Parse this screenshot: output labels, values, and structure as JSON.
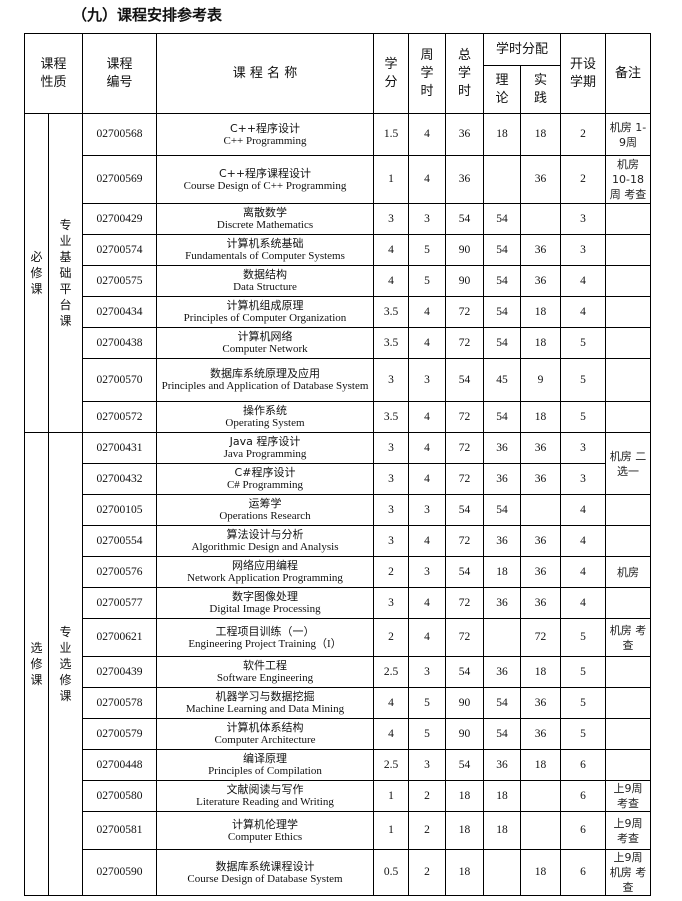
{
  "title": "（九）课程安排参考表",
  "headers": {
    "nature": "课程性质",
    "code": "课程编号",
    "name": "课 程 名 称",
    "credit": "学分",
    "weekly": "周学时",
    "total": "总学时",
    "dist": "学时分配",
    "theory": "理论",
    "practice": "实践",
    "term": "开设学期",
    "remark": "备注"
  },
  "groups": [
    {
      "type": "必修课",
      "sub": "专业基础平台课"
    },
    {
      "type": "选修课",
      "sub": "专业选修课"
    }
  ],
  "rows": [
    {
      "group": 0,
      "code": "02700568",
      "zh": "C++程序设计",
      "en": "C++ Programming",
      "credit": "1.5",
      "weekly": "4",
      "total": "36",
      "theory": "18",
      "practice": "18",
      "term": "2",
      "remark": "机房 1-9周"
    },
    {
      "group": 0,
      "code": "02700569",
      "zh": "C++程序课程设计",
      "en": "Course Design of C++ Programming",
      "credit": "1",
      "weekly": "4",
      "total": "36",
      "theory": "",
      "practice": "36",
      "term": "2",
      "remark": "机房 10-18周 考查"
    },
    {
      "group": 0,
      "code": "02700429",
      "zh": "离散数学",
      "en": "Discrete Mathematics",
      "credit": "3",
      "weekly": "3",
      "total": "54",
      "theory": "54",
      "practice": "",
      "term": "3",
      "remark": ""
    },
    {
      "group": 0,
      "code": "02700574",
      "zh": "计算机系统基础",
      "en": "Fundamentals of Computer Systems",
      "credit": "4",
      "weekly": "5",
      "total": "90",
      "theory": "54",
      "practice": "36",
      "term": "3",
      "remark": ""
    },
    {
      "group": 0,
      "code": "02700575",
      "zh": "数据结构",
      "en": "Data Structure",
      "credit": "4",
      "weekly": "5",
      "total": "90",
      "theory": "54",
      "practice": "36",
      "term": "4",
      "remark": ""
    },
    {
      "group": 0,
      "code": "02700434",
      "zh": "计算机组成原理",
      "en": "Principles of Computer Organization",
      "credit": "3.5",
      "weekly": "4",
      "total": "72",
      "theory": "54",
      "practice": "18",
      "term": "4",
      "remark": ""
    },
    {
      "group": 0,
      "code": "02700438",
      "zh": "计算机网络",
      "en": "Computer Network",
      "credit": "3.5",
      "weekly": "4",
      "total": "72",
      "theory": "54",
      "practice": "18",
      "term": "5",
      "remark": ""
    },
    {
      "group": 0,
      "code": "02700570",
      "zh": "数据库系统原理及应用",
      "en": "Principles and Application of Database System",
      "credit": "3",
      "weekly": "3",
      "total": "54",
      "theory": "45",
      "practice": "9",
      "term": "5",
      "remark": ""
    },
    {
      "group": 0,
      "code": "02700572",
      "zh": "操作系统",
      "en": "Operating System",
      "credit": "3.5",
      "weekly": "4",
      "total": "72",
      "theory": "54",
      "practice": "18",
      "term": "5",
      "remark": ""
    },
    {
      "group": 1,
      "code": "02700431",
      "zh": "Java 程序设计",
      "en": "Java Programming",
      "credit": "3",
      "weekly": "4",
      "total": "72",
      "theory": "36",
      "practice": "36",
      "term": "3",
      "remark": "机房 二选一",
      "remark_span": 2
    },
    {
      "group": 1,
      "code": "02700432",
      "zh": "C#程序设计",
      "en": "C# Programming",
      "credit": "3",
      "weekly": "4",
      "total": "72",
      "theory": "36",
      "practice": "36",
      "term": "3",
      "remark": null
    },
    {
      "group": 1,
      "code": "02700105",
      "zh": "运筹学",
      "en": "Operations Research",
      "credit": "3",
      "weekly": "3",
      "total": "54",
      "theory": "54",
      "practice": "",
      "term": "4",
      "remark": ""
    },
    {
      "group": 1,
      "code": "02700554",
      "zh": "算法设计与分析",
      "en": "Algorithmic Design and Analysis",
      "credit": "3",
      "weekly": "4",
      "total": "72",
      "theory": "36",
      "practice": "36",
      "term": "4",
      "remark": ""
    },
    {
      "group": 1,
      "code": "02700576",
      "zh": "网络应用编程",
      "en": "Network Application Programming",
      "credit": "2",
      "weekly": "3",
      "total": "54",
      "theory": "18",
      "practice": "36",
      "term": "4",
      "remark": "机房"
    },
    {
      "group": 1,
      "code": "02700577",
      "zh": "数字图像处理",
      "en": "Digital Image Processing",
      "credit": "3",
      "weekly": "4",
      "total": "72",
      "theory": "36",
      "practice": "36",
      "term": "4",
      "remark": ""
    },
    {
      "group": 1,
      "code": "02700621",
      "zh": "工程项目训练（一）",
      "en": "Engineering Project Training（I）",
      "credit": "2",
      "weekly": "4",
      "total": "72",
      "theory": "",
      "practice": "72",
      "term": "5",
      "remark": "机房 考查"
    },
    {
      "group": 1,
      "code": "02700439",
      "zh": "软件工程",
      "en": "Software Engineering",
      "credit": "2.5",
      "weekly": "3",
      "total": "54",
      "theory": "36",
      "practice": "18",
      "term": "5",
      "remark": ""
    },
    {
      "group": 1,
      "code": "02700578",
      "zh": "机器学习与数据挖掘",
      "en": "Machine Learning and Data Mining",
      "credit": "4",
      "weekly": "5",
      "total": "90",
      "theory": "54",
      "practice": "36",
      "term": "5",
      "remark": ""
    },
    {
      "group": 1,
      "code": "02700579",
      "zh": "计算机体系结构",
      "en": "Computer Architecture",
      "credit": "4",
      "weekly": "5",
      "total": "90",
      "theory": "54",
      "practice": "36",
      "term": "5",
      "remark": ""
    },
    {
      "group": 1,
      "code": "02700448",
      "zh": "编译原理",
      "en": "Principles of Compilation",
      "credit": "2.5",
      "weekly": "3",
      "total": "54",
      "theory": "36",
      "practice": "18",
      "term": "6",
      "remark": ""
    },
    {
      "group": 1,
      "code": "02700580",
      "zh": "文献阅读与写作",
      "en": "Literature Reading and Writing",
      "credit": "1",
      "weekly": "2",
      "total": "18",
      "theory": "18",
      "practice": "",
      "term": "6",
      "remark": "上9周 考查"
    },
    {
      "group": 1,
      "code": "02700581",
      "zh": "计算机伦理学",
      "en": "Computer Ethics",
      "credit": "1",
      "weekly": "2",
      "total": "18",
      "theory": "18",
      "practice": "",
      "term": "6",
      "remark": "上9周 考查"
    },
    {
      "group": 1,
      "code": "02700590",
      "zh": "数据库系统课程设计",
      "en": "Course Design of Database System",
      "credit": "0.5",
      "weekly": "2",
      "total": "18",
      "theory": "",
      "practice": "18",
      "term": "6",
      "remark": "上9周 机房 考查"
    }
  ]
}
